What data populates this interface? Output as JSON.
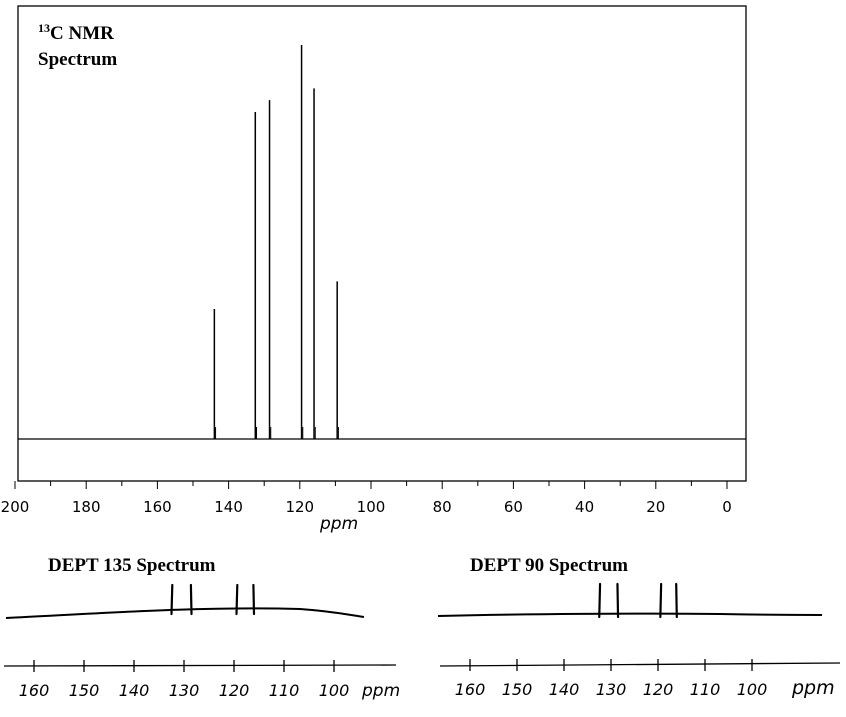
{
  "chart_data": [
    {
      "type": "line",
      "title_sup": "13",
      "title_line1": "C NMR",
      "title_line2": "Spectrum",
      "xlabel": "ppm",
      "xlim": [
        200,
        0
      ],
      "xticks": [
        200,
        180,
        160,
        140,
        120,
        100,
        80,
        60,
        40,
        20,
        0
      ],
      "tick_labels": [
        "200",
        "180",
        "160",
        "140",
        "120",
        "100",
        "80",
        "60",
        "40",
        "20",
        "0"
      ],
      "peaks": [
        {
          "ppm": 144.0,
          "intensity": 0.33
        },
        {
          "ppm": 132.5,
          "intensity": 0.83
        },
        {
          "ppm": 128.5,
          "intensity": 0.86
        },
        {
          "ppm": 119.5,
          "intensity": 1.0
        },
        {
          "ppm": 116.0,
          "intensity": 0.89
        },
        {
          "ppm": 109.5,
          "intensity": 0.4
        }
      ]
    },
    {
      "type": "line",
      "title": "DEPT 135 Spectrum",
      "xlabel": "ppm",
      "xticks": [
        160,
        150,
        140,
        130,
        120,
        110,
        100
      ],
      "tick_labels": [
        "160",
        "150",
        "140",
        "130",
        "120",
        "110",
        "100"
      ],
      "peaks": [
        {
          "ppm": 132.5,
          "direction": "up"
        },
        {
          "ppm": 128.5,
          "direction": "up"
        },
        {
          "ppm": 119.5,
          "direction": "up"
        },
        {
          "ppm": 116.0,
          "direction": "up"
        }
      ]
    },
    {
      "type": "line",
      "title": "DEPT 90 Spectrum",
      "xlabel": "ppm",
      "xticks": [
        160,
        150,
        140,
        130,
        120,
        110,
        100
      ],
      "tick_labels": [
        "160",
        "150",
        "140",
        "130",
        "120",
        "110",
        "100"
      ],
      "peaks": [
        {
          "ppm": 132.5,
          "direction": "up"
        },
        {
          "ppm": 128.5,
          "direction": "up"
        },
        {
          "ppm": 119.5,
          "direction": "up"
        },
        {
          "ppm": 116.0,
          "direction": "up"
        }
      ]
    }
  ]
}
